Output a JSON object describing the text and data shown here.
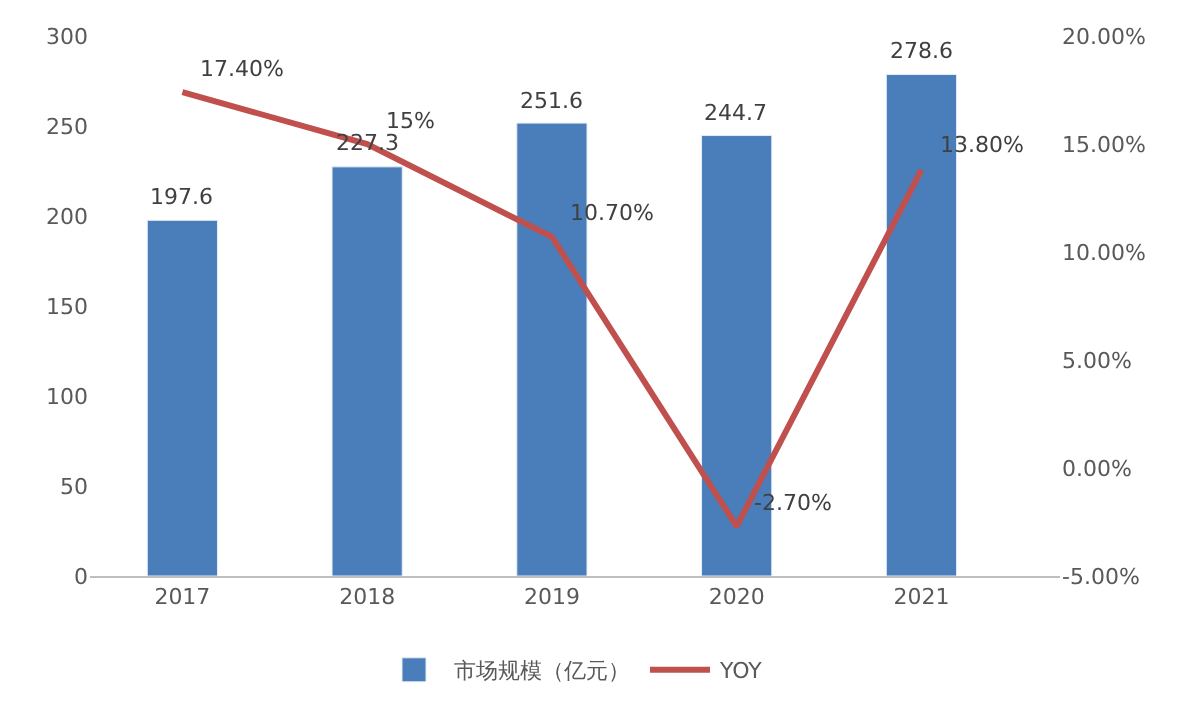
{
  "chart_data": {
    "type": "bar",
    "categories": [
      "2017",
      "2018",
      "2019",
      "2020",
      "2021"
    ],
    "series": [
      {
        "name": "市场规模（亿元）",
        "type": "bar",
        "color": "#4a7ebb",
        "values": [
          197.6,
          227.3,
          251.6,
          244.7,
          278.6
        ],
        "value_labels": [
          "197.6",
          "227.3",
          "251.6",
          "244.7",
          "278.6"
        ]
      },
      {
        "name": "YOY",
        "type": "line",
        "axis": "y2",
        "color": "#c0504d",
        "values": [
          17.4,
          15,
          10.7,
          -2.7,
          13.8
        ],
        "value_labels": [
          "17.40%",
          "15%",
          "10.70%",
          "-2.70%",
          "13.80%"
        ]
      }
    ],
    "ylim": [
      0,
      300
    ],
    "yticks": [
      0,
      50,
      100,
      150,
      200,
      250,
      300
    ],
    "y2lim": [
      -5,
      20
    ],
    "y2ticks": [
      {
        "value": -5,
        "label": "-5.00%"
      },
      {
        "value": 0,
        "label": "0.00%"
      },
      {
        "value": 5,
        "label": "5.00%"
      },
      {
        "value": 10,
        "label": "10.00%"
      },
      {
        "value": 15,
        "label": "15.00%"
      },
      {
        "value": 20,
        "label": "20.00%"
      }
    ],
    "legend": "bottom",
    "marker": "none",
    "line_style": "solid"
  }
}
